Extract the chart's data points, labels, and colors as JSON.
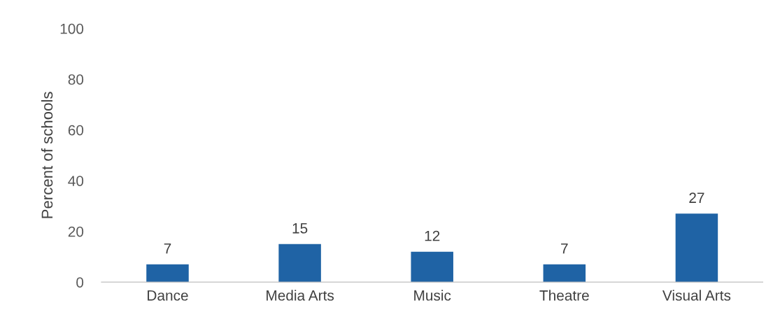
{
  "chart_data": {
    "type": "bar",
    "ylabel": "Percent of schools",
    "categories": [
      "Dance",
      "Media Arts",
      "Music",
      "Theatre",
      "Visual Arts"
    ],
    "values": [
      7,
      15,
      12,
      7,
      27
    ],
    "color": "#1f63a5",
    "ylim": [
      0,
      100
    ],
    "yticks": [
      0,
      20,
      40,
      60,
      80,
      100
    ],
    "grid": false,
    "data_labels": true
  }
}
